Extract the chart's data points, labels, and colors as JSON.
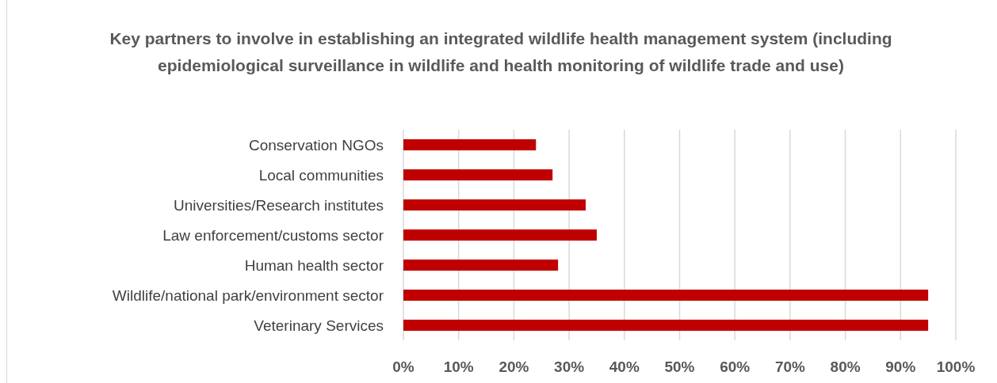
{
  "chart_data": {
    "type": "bar",
    "orientation": "horizontal",
    "title": "Key partners to involve in establishing an integrated wildlife health management system (including epidemiological surveillance in wildlife and health monitoring of wildlife trade and use)",
    "categories": [
      "Conservation NGOs",
      "Local communities",
      "Universities/Research institutes",
      "Law enforcement/customs sector",
      "Human health sector",
      "Wildlife/national park/environment sector",
      "Veterinary Services"
    ],
    "values": [
      24,
      27,
      33,
      35,
      28,
      95,
      95
    ],
    "color": "#c00000",
    "xlim": [
      0,
      100
    ],
    "xticks": [
      {
        "value": 0,
        "label": "0%"
      },
      {
        "value": 10,
        "label": "10%"
      },
      {
        "value": 20,
        "label": "20%"
      },
      {
        "value": 30,
        "label": "30%"
      },
      {
        "value": 40,
        "label": "40%"
      },
      {
        "value": 50,
        "label": "50%"
      },
      {
        "value": 60,
        "label": "60%"
      },
      {
        "value": 70,
        "label": "70%"
      },
      {
        "value": 80,
        "label": "80%"
      },
      {
        "value": 90,
        "label": "90%"
      },
      {
        "value": 100,
        "label": "100%"
      }
    ],
    "grid": "x"
  }
}
